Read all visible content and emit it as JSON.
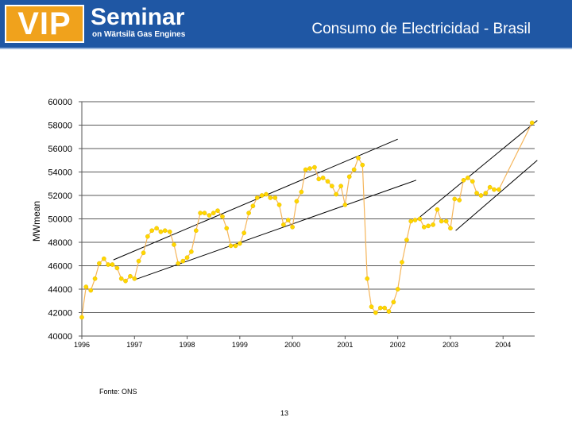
{
  "header": {
    "logo_vip": "VIP",
    "logo_seminar": "Seminar",
    "logo_sub": "on Wärtsilä Gas Engines",
    "title": "Consumo de Electricidad - Brasil",
    "colors": {
      "bar": "#1f57a4",
      "logo": "#f0a21c"
    }
  },
  "footer": {
    "source": "Fonte: ONS",
    "page": "13"
  },
  "chart_data": {
    "type": "line",
    "title": "",
    "xlabel": "",
    "ylabel": "MWmean",
    "x_ticks": [
      "1996",
      "1997",
      "1998",
      "1999",
      "2000",
      "2001",
      "2002",
      "2003",
      "2004"
    ],
    "y_ticks": [
      "60000",
      "58000",
      "56000",
      "54000",
      "52000",
      "50000",
      "48000",
      "46000",
      "44000",
      "42000",
      "40000"
    ],
    "xlim": [
      1996,
      2004.6
    ],
    "ylim": [
      40000,
      60000
    ],
    "grid": "horizontal",
    "colors": {
      "line": "#f5b55a",
      "marker": "#ffd700",
      "trend": "#000000"
    },
    "series": [
      {
        "x": [
          1996.0,
          1996.08,
          1996.17,
          1996.25,
          1996.33,
          1996.42,
          1996.5,
          1996.58,
          1996.67,
          1996.75,
          1996.83,
          1996.92,
          1997.0,
          1997.08,
          1997.17,
          1997.25,
          1997.33,
          1997.42,
          1997.5,
          1997.58,
          1997.67,
          1997.75,
          1997.83,
          1997.92,
          1998.0,
          1998.08,
          1998.17,
          1998.25,
          1998.33,
          1998.42,
          1998.5,
          1998.58,
          1998.67,
          1998.75,
          1998.83,
          1998.92,
          1999.0,
          1999.08,
          1999.17,
          1999.25,
          1999.33,
          1999.42,
          1999.5,
          1999.58,
          1999.67,
          1999.75,
          1999.83,
          1999.92,
          2000.0,
          2000.08,
          2000.17,
          2000.25,
          2000.33,
          2000.42,
          2000.5,
          2000.58,
          2000.67,
          2000.75,
          2000.83,
          2000.92,
          2001.0,
          2001.08,
          2001.17,
          2001.25,
          2001.33,
          2001.42,
          2001.5,
          2001.58,
          2001.67,
          2001.75,
          2001.83,
          2001.92,
          2002.0,
          2002.08,
          2002.17,
          2002.25,
          2002.33,
          2002.42,
          2002.5,
          2002.58,
          2002.67,
          2002.75,
          2002.83,
          2002.92,
          2003.0,
          2003.08,
          2003.17,
          2003.25,
          2003.33,
          2003.42,
          2003.5,
          2003.58,
          2003.67,
          2003.75,
          2003.83,
          2003.92,
          2004.55
        ],
        "values": [
          41600,
          44200,
          43900,
          44900,
          46200,
          46600,
          46100,
          46100,
          45800,
          44900,
          44700,
          45100,
          44900,
          46400,
          47100,
          48500,
          49000,
          49200,
          48900,
          49000,
          48900,
          47800,
          46200,
          46400,
          46700,
          47200,
          49000,
          50500,
          50500,
          50300,
          50500,
          50700,
          50200,
          49200,
          47700,
          47700,
          47900,
          48800,
          50500,
          51100,
          51800,
          52000,
          52100,
          51800,
          51800,
          51200,
          49500,
          49900,
          49300,
          51500,
          52300,
          54200,
          54300,
          54400,
          53400,
          53500,
          53200,
          52800,
          52100,
          52800,
          51200,
          53600,
          54200,
          55200,
          54600,
          44900,
          42500,
          42000,
          42400,
          42400,
          42100,
          42900,
          44000,
          46300,
          48200,
          49800,
          49900,
          50000,
          49300,
          49400,
          49500,
          50800,
          49800,
          49800,
          49200,
          51700,
          51600,
          53300,
          53500,
          53200,
          52200,
          52000,
          52200,
          52700,
          52500,
          52500,
          58200
        ]
      }
    ],
    "trendlines": [
      {
        "from": [
          1996.6,
          46500
        ],
        "to": [
          2002.0,
          56800
        ]
      },
      {
        "from": [
          1997.0,
          44800
        ],
        "to": [
          2002.35,
          53300
        ]
      },
      {
        "from": [
          2002.35,
          49900
        ],
        "to": [
          2004.65,
          58400
        ]
      },
      {
        "from": [
          2003.1,
          49000
        ],
        "to": [
          2004.65,
          55000
        ]
      }
    ]
  }
}
